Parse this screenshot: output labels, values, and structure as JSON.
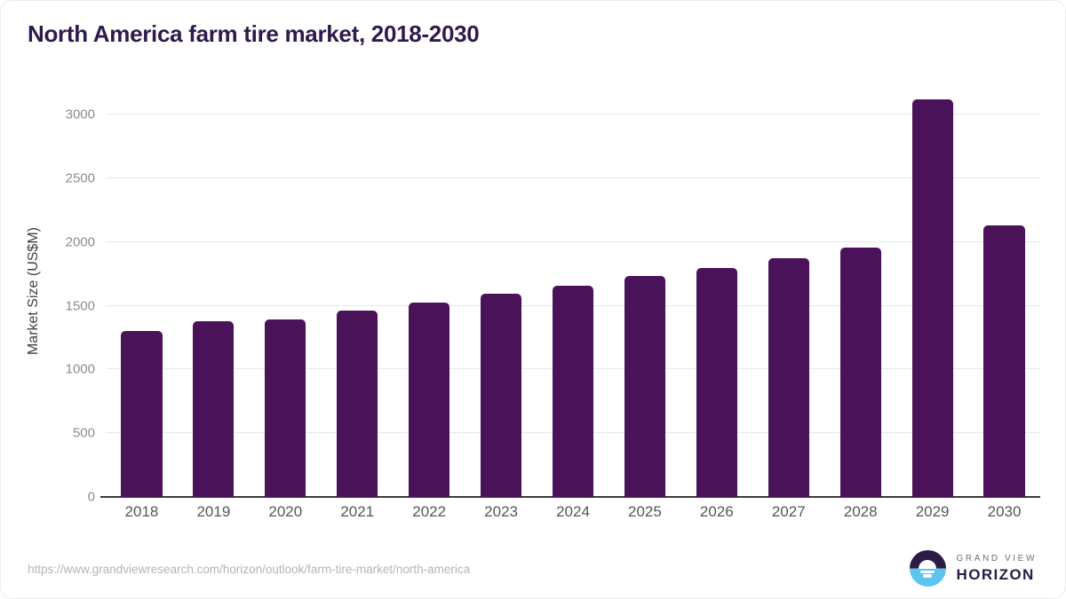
{
  "chart_data": {
    "type": "bar",
    "title": "North America farm tire market, 2018-2030",
    "categories": [
      "2018",
      "2019",
      "2020",
      "2021",
      "2022",
      "2023",
      "2024",
      "2025",
      "2026",
      "2027",
      "2028",
      "2029",
      "2030"
    ],
    "values": [
      1300,
      1380,
      1395,
      1465,
      1525,
      1595,
      1660,
      1735,
      1800,
      1875,
      1960,
      3120,
      2135
    ],
    "xlabel": "",
    "ylabel": "Market Size (US$M)",
    "ylim": [
      0,
      3232
    ],
    "yticks": [
      0,
      500,
      1000,
      1500,
      2000,
      2500,
      3000
    ],
    "grid": true,
    "legend": "none",
    "bar_color": "#4a1259"
  },
  "footer": {
    "source_url": "https://www.grandviewresearch.com/horizon/outlook/farm-tire-market/north-america"
  },
  "logo": {
    "brand_top": "GRAND VIEW",
    "brand_bottom": "HORIZON",
    "icon": "sun-over-water-icon",
    "icon_color_top": "#2b1b47",
    "icon_color_bottom": "#5ec3ee"
  },
  "colors": {
    "title": "#2f1a4c",
    "bar": "#4a1259",
    "gridline": "#e8e8e8",
    "axis_line": "#3b3b3b",
    "y_tick_label": "#8c8c8c",
    "x_tick_label": "#565656",
    "source_url": "#b4b4b4"
  }
}
